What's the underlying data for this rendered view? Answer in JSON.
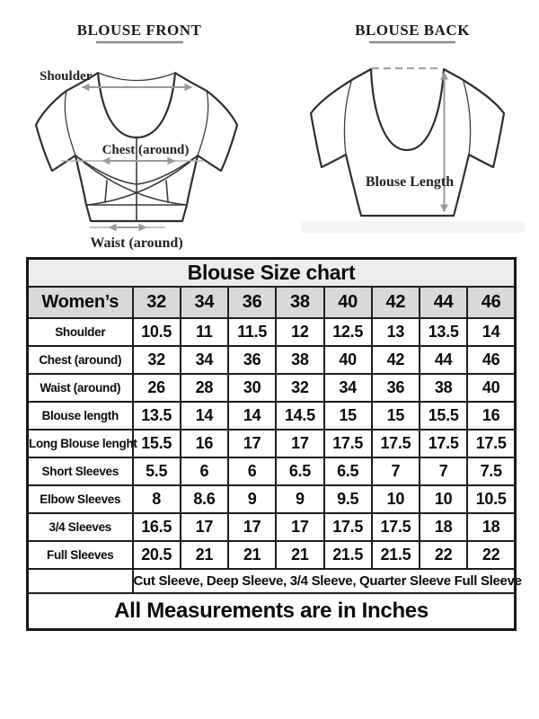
{
  "diagrams": {
    "front": {
      "title": "BLOUSE FRONT",
      "shoulder_label": "Shoulder",
      "chest_label": "Chest (around)",
      "waist_label": "Waist (around)"
    },
    "back": {
      "title": "BLOUSE BACK",
      "length_label": "Blouse Length"
    }
  },
  "chart_data": {
    "type": "table",
    "title": "Blouse Size chart",
    "corner_label": "Women’s",
    "sizes": [
      "32",
      "34",
      "36",
      "38",
      "40",
      "42",
      "44",
      "46"
    ],
    "rows": [
      {
        "label": "Shoulder",
        "values": [
          "10.5",
          "11",
          "11.5",
          "12",
          "12.5",
          "13",
          "13.5",
          "14"
        ]
      },
      {
        "label": "Chest (around)",
        "values": [
          "32",
          "34",
          "36",
          "38",
          "40",
          "42",
          "44",
          "46"
        ]
      },
      {
        "label": "Waist (around)",
        "values": [
          "26",
          "28",
          "30",
          "32",
          "34",
          "36",
          "38",
          "40"
        ]
      },
      {
        "label": "Blouse length",
        "values": [
          "13.5",
          "14",
          "14",
          "14.5",
          "15",
          "15",
          "15.5",
          "16"
        ]
      },
      {
        "label": "Long Blouse lenght",
        "values": [
          "15.5",
          "16",
          "17",
          "17",
          "17.5",
          "17.5",
          "17.5",
          "17.5"
        ]
      },
      {
        "label": "Short Sleeves",
        "values": [
          "5.5",
          "6",
          "6",
          "6.5",
          "6.5",
          "7",
          "7",
          "7.5"
        ]
      },
      {
        "label": "Elbow Sleeves",
        "values": [
          "8",
          "8.6",
          "9",
          "9",
          "9.5",
          "10",
          "10",
          "10.5"
        ]
      },
      {
        "label": "3/4 Sleeves",
        "values": [
          "16.5",
          "17",
          "17",
          "17",
          "17.5",
          "17.5",
          "18",
          "18"
        ]
      },
      {
        "label": "Full Sleeves",
        "values": [
          "20.5",
          "21",
          "21",
          "21",
          "21.5",
          "21.5",
          "22",
          "22"
        ]
      }
    ],
    "sleeve_note": "Cut Sleeve, Deep Sleeve, 3/4 Sleeve, Quarter Sleeve Full Sleeve",
    "footer": "All Measurements are in Inches"
  },
  "colors": {
    "title_row_bg": "#ececec",
    "header_row_bg": "#d9d9d9",
    "table_border": "#1e1e1e",
    "measure_arrow": "#9a9a9a"
  }
}
